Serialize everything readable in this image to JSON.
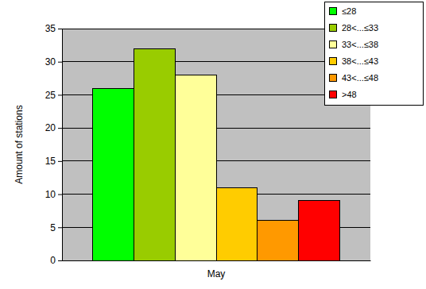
{
  "chart_data": {
    "type": "bar",
    "categories": [
      "May"
    ],
    "y_label": "Amount of stations",
    "series": [
      {
        "name": "≤28",
        "color": "#00ff00",
        "values": [
          26
        ]
      },
      {
        "name": "28<...≤33",
        "color": "#99cc00",
        "values": [
          32
        ]
      },
      {
        "name": "33<...≤38",
        "color": "#ffff99",
        "values": [
          28
        ]
      },
      {
        "name": "38<...≤43",
        "color": "#ffcc00",
        "values": [
          11
        ]
      },
      {
        "name": "43<...≤48",
        "color": "#ff9900",
        "values": [
          6
        ]
      },
      {
        "name": ">48",
        "color": "#ff0000",
        "values": [
          9
        ]
      }
    ],
    "ylim": [
      0,
      35
    ],
    "yticks": [
      0,
      5,
      10,
      15,
      20,
      25,
      30,
      35
    ],
    "grid": true,
    "legend": "top-right"
  }
}
